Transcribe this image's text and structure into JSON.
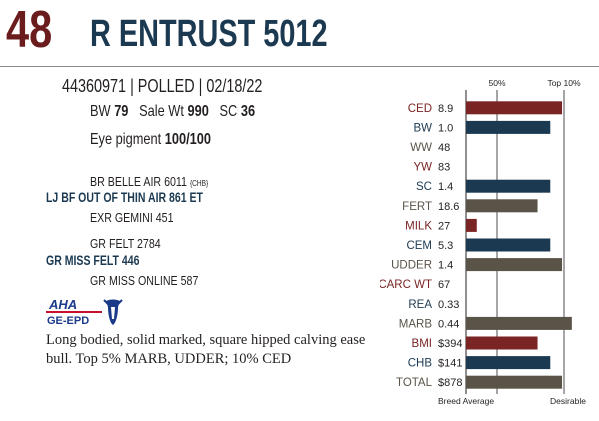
{
  "header": {
    "lot_number": "48",
    "bull_name": "R ENTRUST 5012"
  },
  "info": {
    "registration_line": "44360971 | POLLED | 02/18/22",
    "bw_label": "BW",
    "bw_value": "79",
    "sale_wt_label": "Sale Wt",
    "sale_wt_value": "990",
    "sc_label": "SC",
    "sc_value": "36",
    "eye_label": "Eye pigment",
    "eye_value": "100/100"
  },
  "pedigree": {
    "sire_sire": "BR BELLE AIR 6011",
    "sire_sire_tag": "{CHB}",
    "sire": "LJ BF OUT OF THIN AIR 861 ET",
    "sire_dam": "EXR GEMINI 451",
    "dam_sire": "GR FELT 2784",
    "dam": "GR MISS FELT 446",
    "dam_dam": "GR MISS ONLINE 587"
  },
  "logo": {
    "line1": "AHA",
    "line2": "GE-EPD",
    "color": "#1b3a8a",
    "accent": "#c8102e",
    "icon": "hereford-head-icon"
  },
  "description": "Long bodied, solid marked, square hipped calving ease bull. Top 5% MARB, UDDER; 10% CED",
  "chart_data": {
    "type": "bar",
    "top_labels": [
      "50%",
      "Top 10%"
    ],
    "bottom_labels": [
      "Breed Average",
      "Desirable"
    ],
    "colors": {
      "red": "#7a2424",
      "blue": "#1b3a52",
      "gray": "#5a5448"
    },
    "rows": [
      {
        "trait": "CED",
        "value": "8.9",
        "bar": 0.98,
        "color": "red"
      },
      {
        "trait": "BW",
        "value": "1.0",
        "bar": 0.86,
        "color": "blue"
      },
      {
        "trait": "WW",
        "value": "48",
        "bar": 0,
        "color": "gray"
      },
      {
        "trait": "YW",
        "value": "83",
        "bar": 0,
        "color": "red"
      },
      {
        "trait": "SC",
        "value": "1.4",
        "bar": 0.86,
        "color": "blue"
      },
      {
        "trait": "FERT",
        "value": "18.6",
        "bar": 0.73,
        "color": "gray"
      },
      {
        "trait": "MILK",
        "value": "27",
        "bar": 0.11,
        "color": "red"
      },
      {
        "trait": "CEM",
        "value": "5.3",
        "bar": 0.86,
        "color": "blue"
      },
      {
        "trait": "UDDER",
        "value": "1.4",
        "bar": 0.98,
        "color": "gray"
      },
      {
        "trait": "CARC WT",
        "value": "67",
        "bar": 0,
        "color": "red"
      },
      {
        "trait": "REA",
        "value": "0.33",
        "bar": 0,
        "color": "blue"
      },
      {
        "trait": "MARB",
        "value": "0.44",
        "bar": 1.08,
        "color": "gray"
      },
      {
        "trait": "BMI",
        "value": "$394",
        "bar": 0.73,
        "color": "red"
      },
      {
        "trait": "CHB",
        "value": "$141",
        "bar": 0.86,
        "color": "blue"
      },
      {
        "trait": "TOTAL",
        "value": "$878",
        "bar": 0.98,
        "color": "gray"
      }
    ]
  }
}
